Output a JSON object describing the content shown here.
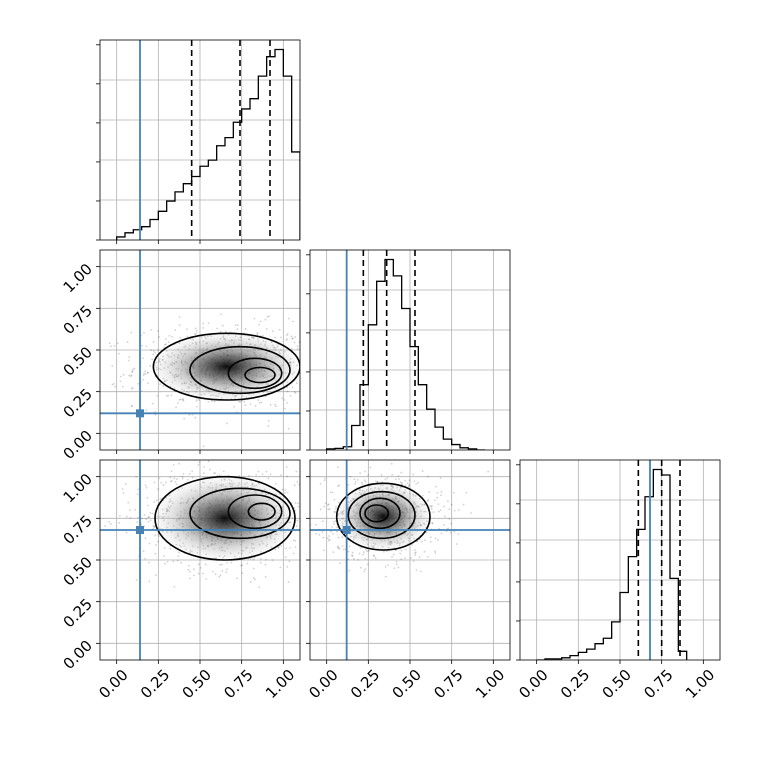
{
  "chart_data": {
    "type": "corner",
    "title": "",
    "params": 3,
    "truth": [
      0.14,
      0.12,
      0.68
    ],
    "truth_color": "#4682b4",
    "range": [
      -0.1,
      1.1
    ],
    "ticks": [
      0.0,
      0.25,
      0.5,
      0.75,
      1.0
    ],
    "tick_labels": [
      "0.00",
      "0.25",
      "0.50",
      "0.75",
      "1.00"
    ],
    "grid": true,
    "histograms": [
      {
        "param": 1,
        "bin_width": 0.05,
        "bins_start": 0.0,
        "counts": [
          0.03,
          0.07,
          0.1,
          0.13,
          0.2,
          0.28,
          0.38,
          0.47,
          0.55,
          0.62,
          0.72,
          0.78,
          0.92,
          1.0,
          1.15,
          1.28,
          1.38,
          1.6,
          1.79,
          1.86,
          1.6,
          0.86
        ],
        "quantiles": [
          0.45,
          0.74,
          0.92
        ]
      },
      {
        "param": 2,
        "bin_width": 0.05,
        "bins_start": 0.0,
        "counts": [
          0.02,
          0.03,
          0.06,
          0.45,
          1.2,
          2.3,
          3.1,
          3.5,
          3.2,
          2.6,
          1.9,
          1.2,
          0.75,
          0.42,
          0.2,
          0.1,
          0.04,
          0.02,
          0.0
        ],
        "quantiles": [
          0.22,
          0.36,
          0.53
        ]
      },
      {
        "param": 3,
        "bin_width": 0.05,
        "bins_start": 0.0,
        "counts": [
          0.0,
          0.01,
          0.01,
          0.02,
          0.04,
          0.07,
          0.1,
          0.15,
          0.2,
          0.35,
          0.62,
          0.95,
          1.2,
          1.5,
          1.75,
          1.7,
          0.75,
          0.08
        ],
        "quantiles": [
          0.61,
          0.75,
          0.86
        ]
      }
    ],
    "contours": [
      {
        "x_param": 1,
        "y_param": 2,
        "center": [
          0.86,
          0.35
        ],
        "levels": [
          {
            "rx": 0.09,
            "ry": 0.045,
            "cx": 0.86,
            "cy": 0.35
          },
          {
            "rx": 0.16,
            "ry": 0.09,
            "cx": 0.83,
            "cy": 0.36
          },
          {
            "rx": 0.3,
            "ry": 0.14,
            "cx": 0.74,
            "cy": 0.38
          },
          {
            "rx": 0.44,
            "ry": 0.2,
            "cx": 0.66,
            "cy": 0.4
          }
        ]
      },
      {
        "x_param": 1,
        "y_param": 3,
        "center": [
          0.87,
          0.79
        ],
        "levels": [
          {
            "rx": 0.08,
            "ry": 0.05,
            "cx": 0.87,
            "cy": 0.79
          },
          {
            "rx": 0.16,
            "ry": 0.1,
            "cx": 0.83,
            "cy": 0.79
          },
          {
            "rx": 0.3,
            "ry": 0.15,
            "cx": 0.74,
            "cy": 0.78
          },
          {
            "rx": 0.42,
            "ry": 0.25,
            "cx": 0.65,
            "cy": 0.75
          }
        ]
      },
      {
        "x_param": 2,
        "y_param": 3,
        "center": [
          0.3,
          0.78
        ],
        "levels": [
          {
            "rx": 0.07,
            "ry": 0.05,
            "cx": 0.3,
            "cy": 0.78
          },
          {
            "rx": 0.12,
            "ry": 0.09,
            "cx": 0.32,
            "cy": 0.78
          },
          {
            "rx": 0.2,
            "ry": 0.14,
            "cx": 0.33,
            "cy": 0.77
          },
          {
            "rx": 0.28,
            "ry": 0.2,
            "cx": 0.34,
            "cy": 0.76
          }
        ]
      }
    ]
  }
}
